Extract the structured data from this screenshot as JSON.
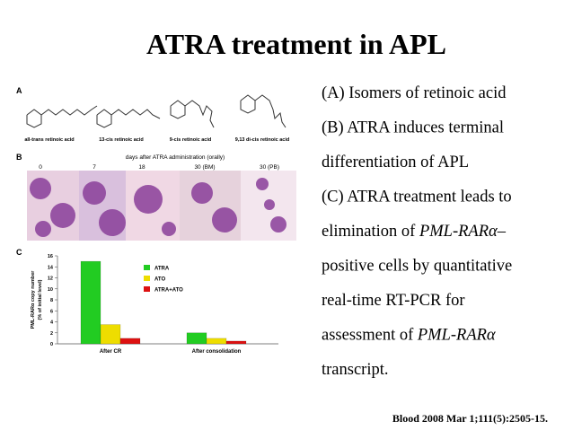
{
  "title": "ATRA treatment in APL",
  "text_lines": [
    [
      {
        "text": "(A) Isomers of retinoic acid"
      }
    ],
    [
      {
        "text": "(B) ATRA induces terminal"
      }
    ],
    [
      {
        "text": "differentiation of APL"
      }
    ],
    [
      {
        "text": "(C) ATRA treatment leads to"
      }
    ],
    [
      {
        "text": "elimination of "
      },
      {
        "text": "PML-RARα–",
        "italic": true
      }
    ],
    [
      {
        "text": "positive cells by quantitative"
      }
    ],
    [
      {
        "text": "real-time RT-PCR for"
      }
    ],
    [
      {
        "text": "assessment of "
      },
      {
        "text": "PML-RARα",
        "italic": true
      }
    ],
    [
      {
        "text": "transcript."
      }
    ]
  ],
  "citation": "Blood 2008 Mar 1;111(5):2505-15.",
  "figure": {
    "panel_labels": [
      "A",
      "B",
      "C"
    ],
    "panel_a": {
      "labels": [
        "all-trans retinoic acid",
        "13-cis retinoic acid",
        "9-cis retinoic acid",
        "9,13 di-cis retinoic acid"
      ]
    },
    "panel_b": {
      "caption": "days after ATRA administration (orally)",
      "days": [
        "0",
        "7",
        "18",
        "30 (BM)",
        "30 (PB)"
      ]
    },
    "panel_c": {
      "chart_data": {
        "type": "bar",
        "y_label": [
          "PML-RARα copy number",
          "(% of initial level)"
        ],
        "categories": [
          "After CR",
          "After consolidation"
        ],
        "series": [
          {
            "name": "ATRA",
            "color": "#22cc22",
            "values": [
              15,
              2
            ]
          },
          {
            "name": "ATO",
            "color": "#eedd00",
            "values": [
              3.5,
              1
            ]
          },
          {
            "name": "ATRA+ATO",
            "color": "#dd1111",
            "values": [
              1,
              0.5
            ]
          }
        ],
        "ylim": [
          0,
          16
        ],
        "yticks": [
          0,
          2,
          4,
          6,
          8,
          10,
          12,
          14,
          16
        ]
      }
    }
  }
}
